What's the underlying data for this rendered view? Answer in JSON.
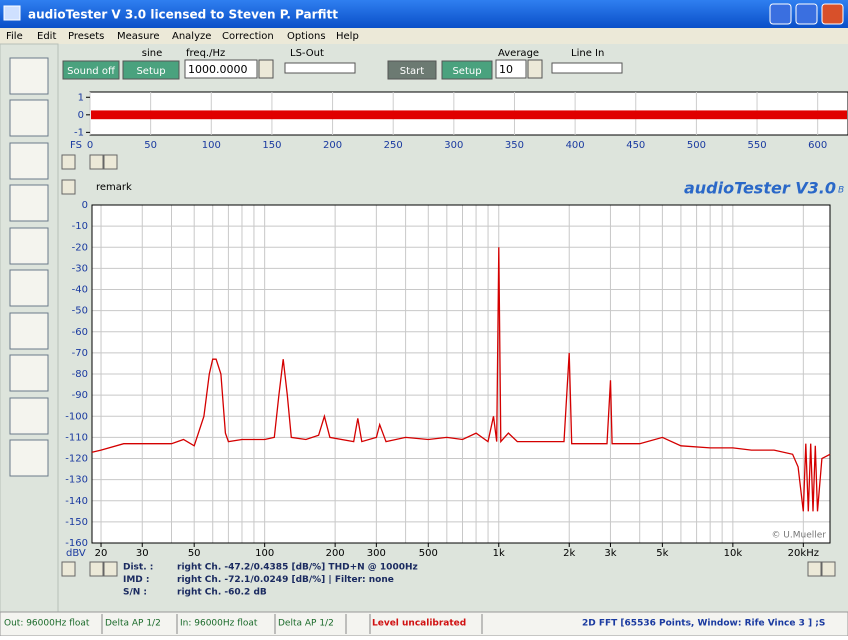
{
  "window": {
    "title": "audioTester  V 3.0   licensed to Steven P. Parfitt"
  },
  "menu": [
    "File",
    "Edit",
    "Presets",
    "Measure",
    "Analyze",
    "Correction",
    "Options",
    "Help"
  ],
  "toolbar": {
    "generator_label": "sine",
    "freq_label": "freq./Hz",
    "ls_out_label": "LS-Out",
    "average_label": "Average",
    "line_in_label": "Line In",
    "sound_button": "Sound off",
    "setup_button_1": "Setup",
    "freq_value": "1000.0000",
    "start_button": "Start",
    "setup_button_2": "Setup",
    "average_value": "10"
  },
  "chart_data": [
    {
      "type": "band",
      "ylabel": "FS",
      "xlim": [
        0,
        625
      ],
      "ylim": [
        -1.15,
        1.3
      ],
      "xticks": [
        0,
        50,
        100,
        150,
        200,
        250,
        300,
        350,
        400,
        450,
        500,
        550,
        600
      ],
      "yticks": [
        1,
        0,
        -1
      ],
      "envelope": [
        -0.25,
        0.25
      ],
      "color": "#e00000"
    },
    {
      "type": "line",
      "ylabel": "dBV",
      "log_x": true,
      "xlim": [
        18.3,
        26000
      ],
      "ylim": [
        -160,
        0
      ],
      "xticks": [
        20,
        30,
        50,
        100,
        200,
        300,
        500,
        {
          "value": 1000,
          "label": "1k"
        },
        {
          "value": 2000,
          "label": "2k"
        },
        {
          "value": 3000,
          "label": "3k"
        },
        {
          "value": 5000,
          "label": "5k"
        },
        {
          "value": 10000,
          "label": "10k"
        },
        {
          "value": 20000,
          "label": "20kHz"
        }
      ],
      "xgrid": [
        20,
        30,
        40,
        50,
        60,
        70,
        80,
        90,
        100,
        200,
        300,
        400,
        500,
        600,
        700,
        800,
        900,
        1000,
        2000,
        3000,
        4000,
        5000,
        6000,
        7000,
        8000,
        9000,
        10000,
        20000
      ],
      "yticks": [
        0,
        -10,
        -20,
        -30,
        -40,
        -50,
        -60,
        -70,
        -80,
        -90,
        -100,
        -110,
        -120,
        -130,
        -140,
        -150,
        -160
      ],
      "grid": true,
      "series": [
        {
          "color": "#d40000",
          "x": [
            18.3,
            20,
            25,
            30,
            40,
            45,
            50,
            55,
            58,
            60,
            62,
            65,
            68,
            70,
            80,
            100,
            110,
            115,
            120,
            125,
            130,
            150,
            170,
            180,
            190,
            240,
            250,
            260,
            300,
            310,
            330,
            400,
            500,
            600,
            700,
            800,
            900,
            950,
            980,
            1000,
            1020,
            1100,
            1200,
            1500,
            1900,
            2000,
            2050,
            2500,
            2900,
            3000,
            3050,
            4000,
            5000,
            6000,
            8000,
            10000,
            12000,
            15000,
            18000,
            19000,
            20000,
            20500,
            21000,
            21500,
            22000,
            22500,
            23000,
            24000,
            26000
          ],
          "values": [
            -117,
            -116,
            -113,
            -113,
            -113,
            -111,
            -114,
            -100,
            -80,
            -73,
            -73,
            -80,
            -108,
            -112,
            -111,
            -111,
            -110,
            -90,
            -73,
            -90,
            -110,
            -111,
            -109,
            -100,
            -110,
            -112,
            -101,
            -112,
            -110,
            -104,
            -112,
            -110,
            -111,
            -110,
            -111,
            -108,
            -112,
            -100,
            -112,
            -20,
            -112,
            -108,
            -112,
            -112,
            -112,
            -70,
            -113,
            -113,
            -113,
            -83,
            -113,
            -113,
            -110,
            -114,
            -115,
            -115,
            -116,
            -116,
            -118,
            -124,
            -145,
            -113,
            -145,
            -113,
            -145,
            -114,
            -145,
            -120,
            -118
          ]
        }
      ]
    }
  ],
  "remark": "remark",
  "brand": {
    "name": "audioTester V3.0",
    "suffix": "B"
  },
  "copyright": "© U.Mueller",
  "measurements": [
    {
      "label": "Dist. :",
      "text": "right Ch. -47.2/0.4385 [dB/%] THD+N  @ 1000Hz"
    },
    {
      "label": "IMD :",
      "text": "right Ch. -72.1/0.0249 [dB/%] |   Filter: none"
    },
    {
      "label": "S/N :",
      "text": "right Ch. -60.2 dB"
    }
  ],
  "statusbar": [
    "Out: 96000Hz float",
    "Delta AP 1/2",
    "In: 96000Hz float",
    "Delta AP 1/2",
    "Level uncalibrated",
    "2D FFT [65536 Points, Window: Rife Vince 3 ] ;S"
  ]
}
